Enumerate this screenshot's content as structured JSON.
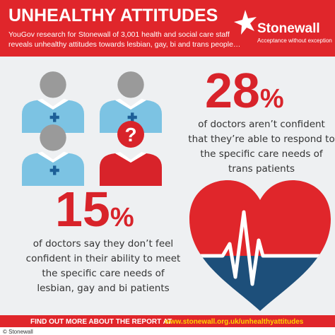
{
  "header": {
    "title": "UNHEALTHY ATTITUDES",
    "subtitle_lines": [
      "YouGov research for Stonewall of 3,001 health and social care staff",
      "reveals unhealthy attitudes towards lesbian, gay, bi and trans people…"
    ],
    "logo": {
      "name": "Stonewall",
      "tagline": "Acceptance without exception"
    }
  },
  "stats": [
    {
      "number": "28",
      "unit": "%",
      "lines": [
        "of doctors aren’t confident",
        "that they’re able to respond to",
        "the specific care needs of",
        "trans patients"
      ]
    },
    {
      "number": "15",
      "unit": "%",
      "lines": [
        "of doctors say they don’t feel",
        "confident in their ability to meet",
        "the specific care needs of",
        "lesbian, gay and bi patients"
      ]
    }
  ],
  "icon_text": "?",
  "footer": {
    "text": "FIND OUT MORE ABOUT THE REPORT AT",
    "url": "www.stonewall.org.uk/unhealthyattitudes",
    "credit": "© Stonewall"
  }
}
